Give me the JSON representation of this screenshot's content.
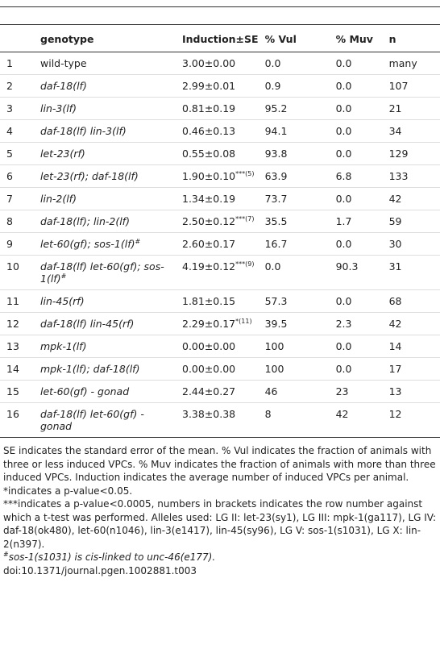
{
  "table": {
    "headers": [
      "genotype",
      "Induction±SE",
      "% Vul",
      "% Muv",
      "n"
    ],
    "rows": [
      {
        "index": "1",
        "genotype": "wild-type",
        "induction": "3.00±0.00",
        "vul": "0.0",
        "muv": "0.0",
        "n": "many"
      },
      {
        "index": "2",
        "genotype": "daf-18(lf)",
        "induction": "2.99±0.01",
        "vul": "0.9",
        "muv": "0.0",
        "n": "107"
      },
      {
        "index": "3",
        "genotype": "lin-3(lf)",
        "induction": "0.81±0.19",
        "vul": "95.2",
        "muv": "0.0",
        "n": "21"
      },
      {
        "index": "4",
        "genotype": "daf-18(lf) lin-3(lf)",
        "induction": "0.46±0.13",
        "vul": "94.1",
        "muv": "0.0",
        "n": "34"
      },
      {
        "index": "5",
        "genotype": "let-23(rf)",
        "induction": "0.55±0.08",
        "vul": "93.8",
        "muv": "0.0",
        "n": "129"
      },
      {
        "index": "6",
        "genotype": "let-23(rf); daf-18(lf)",
        "induction": "1.90±0.10",
        "induction_sup": "***(5)",
        "vul": "63.9",
        "muv": "6.8",
        "n": "133"
      },
      {
        "index": "7",
        "genotype": "lin-2(lf)",
        "induction": "1.34±0.19",
        "vul": "73.7",
        "muv": "0.0",
        "n": "42"
      },
      {
        "index": "8",
        "genotype": "daf-18(lf); lin-2(lf)",
        "induction": "2.50±0.12",
        "induction_sup": "***(7)",
        "vul": "35.5",
        "muv": "1.7",
        "n": "59"
      },
      {
        "index": "9",
        "genotype": "let-60(gf); sos-1(lf)",
        "genotype_sup": "#",
        "induction": "2.60±0.17",
        "vul": "16.7",
        "muv": "0.0",
        "n": "30"
      },
      {
        "index": "10",
        "genotype": "daf-18(lf) let-60(gf); sos-1(lf)",
        "genotype_sup": "#",
        "induction": "4.19±0.12",
        "induction_sup": "***(9)",
        "vul": "0.0",
        "muv": "90.3",
        "n": "31"
      },
      {
        "index": "11",
        "genotype": "lin-45(rf)",
        "induction": "1.81±0.15",
        "vul": "57.3",
        "muv": "0.0",
        "n": "68"
      },
      {
        "index": "12",
        "genotype": "daf-18(lf) lin-45(rf)",
        "induction": "2.29±0.17",
        "induction_sup": "*(11)",
        "vul": "39.5",
        "muv": "2.3",
        "n": "42"
      },
      {
        "index": "13",
        "genotype": "mpk-1(lf)",
        "induction": "0.00±0.00",
        "vul": "100",
        "muv": "0.0",
        "n": "14"
      },
      {
        "index": "14",
        "genotype": "mpk-1(lf); daf-18(lf)",
        "induction": "0.00±0.00",
        "vul": "100",
        "muv": "0.0",
        "n": "17"
      },
      {
        "index": "15",
        "genotype": "let-60(gf) - gonad",
        "induction": "2.44±0.27",
        "vul": "46",
        "muv": "23",
        "n": "13"
      },
      {
        "index": "16",
        "genotype": "daf-18(lf) let-60(gf) - gonad",
        "induction": "3.38±0.38",
        "vul": "8",
        "muv": "42",
        "n": "12"
      }
    ]
  },
  "footnotes": [
    "SE indicates the standard error of the mean. % Vul indicates the fraction of animals with three or less induced VPCs. % Muv indicates the fraction of animals with more than three induced VPCs. Induction indicates the average number of induced VPCs per animal.",
    "*indicates a p-value<0.05.",
    "***indicates a p-value<0.0005, numbers in brackets indicates the row number against which a t-test was performed. Alleles used: LG II: let-23(sy1), LG III: mpk-1(ga117), LG IV: daf-18(ok480), let-60(n1046), lin-3(e1417), lin-45(sy96), LG V: sos-1(s1031), LG X: lin-2(n397).",
    "sos-1(s1031) is cis-linked to unc-46(e177).",
    "doi:10.1371/journal.pgen.1002881.t003"
  ],
  "footnote_sup": "#"
}
